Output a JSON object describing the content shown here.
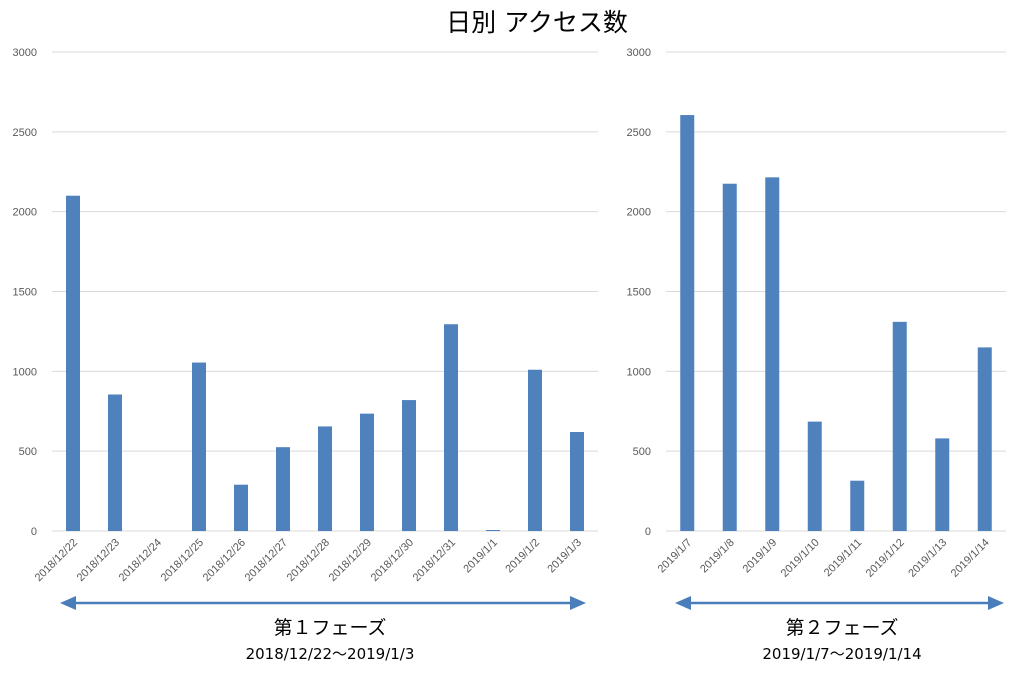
{
  "title": "日別 アクセス数",
  "colors": {
    "bar": "#4f81bd",
    "grid": "#d9d9d9",
    "arrow": "#4a7ebb",
    "tick_text": "#595959"
  },
  "chart_data": [
    {
      "type": "bar",
      "ylim": [
        0,
        3000
      ],
      "yticks": [
        0,
        500,
        1000,
        1500,
        2000,
        2500,
        3000
      ],
      "grid": true,
      "categories": [
        "2018/12/22",
        "2018/12/23",
        "2018/12/24",
        "2018/12/25",
        "2018/12/26",
        "2018/12/27",
        "2018/12/28",
        "2018/12/29",
        "2018/12/30",
        "2018/12/31",
        "2019/1/1",
        "2019/1/2",
        "2019/1/3"
      ],
      "values": [
        2100,
        855,
        0,
        1055,
        290,
        525,
        655,
        735,
        820,
        1295,
        5,
        1010,
        620
      ],
      "phase_label": "第１フェーズ",
      "phase_range": "2018/12/22～2019/1/3"
    },
    {
      "type": "bar",
      "ylim": [
        0,
        3000
      ],
      "yticks": [
        0,
        500,
        1000,
        1500,
        2000,
        2500,
        3000
      ],
      "grid": true,
      "categories": [
        "2019/1/7",
        "2019/1/8",
        "2019/1/9",
        "2019/1/10",
        "2019/1/11",
        "2019/1/12",
        "2019/1/13",
        "2019/1/14"
      ],
      "values": [
        2605,
        2175,
        2215,
        685,
        315,
        1310,
        580,
        1150
      ],
      "phase_label": "第２フェーズ",
      "phase_range": "2019/1/7～2019/1/14"
    }
  ]
}
